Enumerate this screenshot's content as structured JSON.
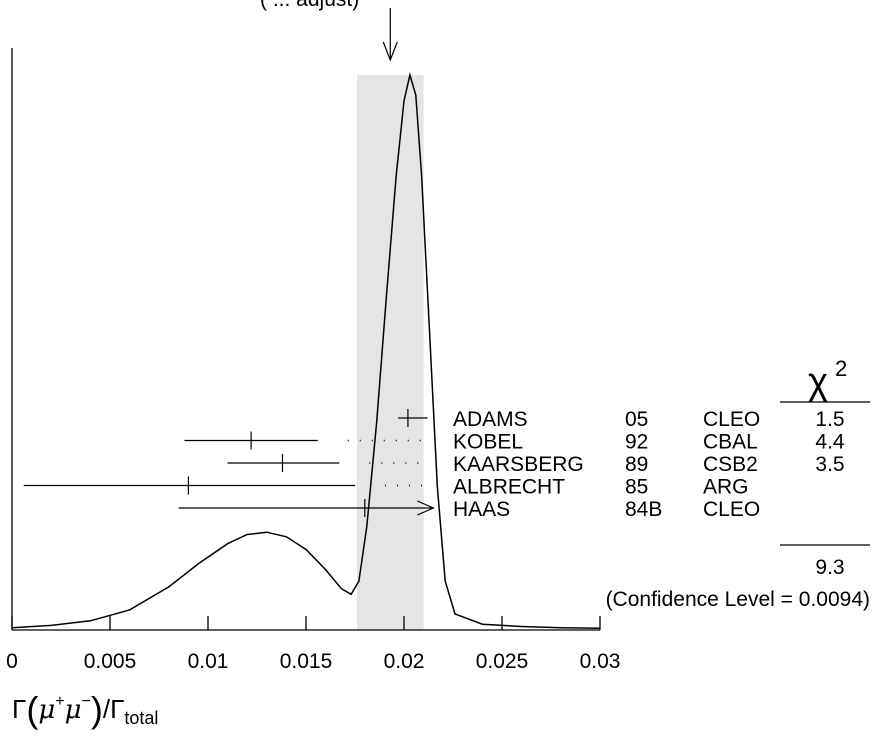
{
  "chart_data": {
    "type": "ideogram",
    "top_label": "(     ... adjust)",
    "xlabel": {
      "main": "Γ",
      "numerator": "μ",
      "num_sup1": "+",
      "num_sup2": "−",
      "denominator": "Γ",
      "den_sub": "total"
    },
    "xlim": [
      0,
      0.03
    ],
    "x_ticks": [
      "0",
      "0.005",
      "0.01",
      "0.015",
      "0.02",
      "0.025",
      "0.03"
    ],
    "x_tick_values": [
      0,
      0.005,
      0.01,
      0.015,
      0.02,
      0.025,
      0.03
    ],
    "average": 0.0193,
    "band": [
      0.0176,
      0.021
    ],
    "chi2_header": "χ",
    "chi2_sup": "2",
    "measurements": [
      {
        "name": "ADAMS",
        "year": "05",
        "experiment": "CLEO",
        "chi2": "1.5",
        "value": 0.0202,
        "low": 0.0197,
        "high": 0.0212,
        "tick": 0.0202,
        "arrow": false,
        "dotted_to": null
      },
      {
        "name": "KOBEL",
        "year": "92",
        "experiment": "CBAL",
        "chi2": "4.4",
        "value": 0.0122,
        "low": 0.0088,
        "high": 0.0156,
        "tick": 0.0122,
        "arrow": false,
        "dotted_to": 0.0212
      },
      {
        "name": "KAARSBERG",
        "year": "89",
        "experiment": "CSB2",
        "chi2": "3.5",
        "value": 0.0138,
        "low": 0.011,
        "high": 0.0167,
        "tick": 0.0138,
        "arrow": false,
        "dotted_to": 0.0212
      },
      {
        "name": "ALBRECHT",
        "year": "85",
        "experiment": "ARG",
        "chi2": "",
        "value": 0.009,
        "low": 0.0006,
        "high": 0.0175,
        "tick": 0.009,
        "arrow": false,
        "dotted_to": 0.0212
      },
      {
        "name": "HAAS",
        "year": "84B",
        "experiment": "CLEO",
        "chi2": "",
        "value": 0.018,
        "low": 0.0085,
        "high": 0.0215,
        "tick": 0.018,
        "arrow": true,
        "dotted_to": null
      }
    ],
    "chi2_total": "9.3",
    "confidence_text": "(Confidence Level = 0.0094)",
    "curve": [
      [
        0.0,
        0.004
      ],
      [
        0.002,
        0.008
      ],
      [
        0.004,
        0.016
      ],
      [
        0.006,
        0.035
      ],
      [
        0.008,
        0.075
      ],
      [
        0.0095,
        0.115
      ],
      [
        0.011,
        0.15
      ],
      [
        0.012,
        0.166
      ],
      [
        0.013,
        0.17
      ],
      [
        0.014,
        0.162
      ],
      [
        0.015,
        0.14
      ],
      [
        0.016,
        0.105
      ],
      [
        0.0168,
        0.072
      ],
      [
        0.0173,
        0.062
      ],
      [
        0.0177,
        0.085
      ],
      [
        0.0181,
        0.18
      ],
      [
        0.0186,
        0.36
      ],
      [
        0.0191,
        0.58
      ],
      [
        0.0196,
        0.79
      ],
      [
        0.02,
        0.92
      ],
      [
        0.0203,
        0.965
      ],
      [
        0.0206,
        0.93
      ],
      [
        0.0209,
        0.79
      ],
      [
        0.0213,
        0.52
      ],
      [
        0.0217,
        0.25
      ],
      [
        0.0221,
        0.085
      ],
      [
        0.0226,
        0.028
      ],
      [
        0.024,
        0.01
      ],
      [
        0.026,
        0.006
      ],
      [
        0.028,
        0.004
      ],
      [
        0.03,
        0.003
      ]
    ]
  }
}
